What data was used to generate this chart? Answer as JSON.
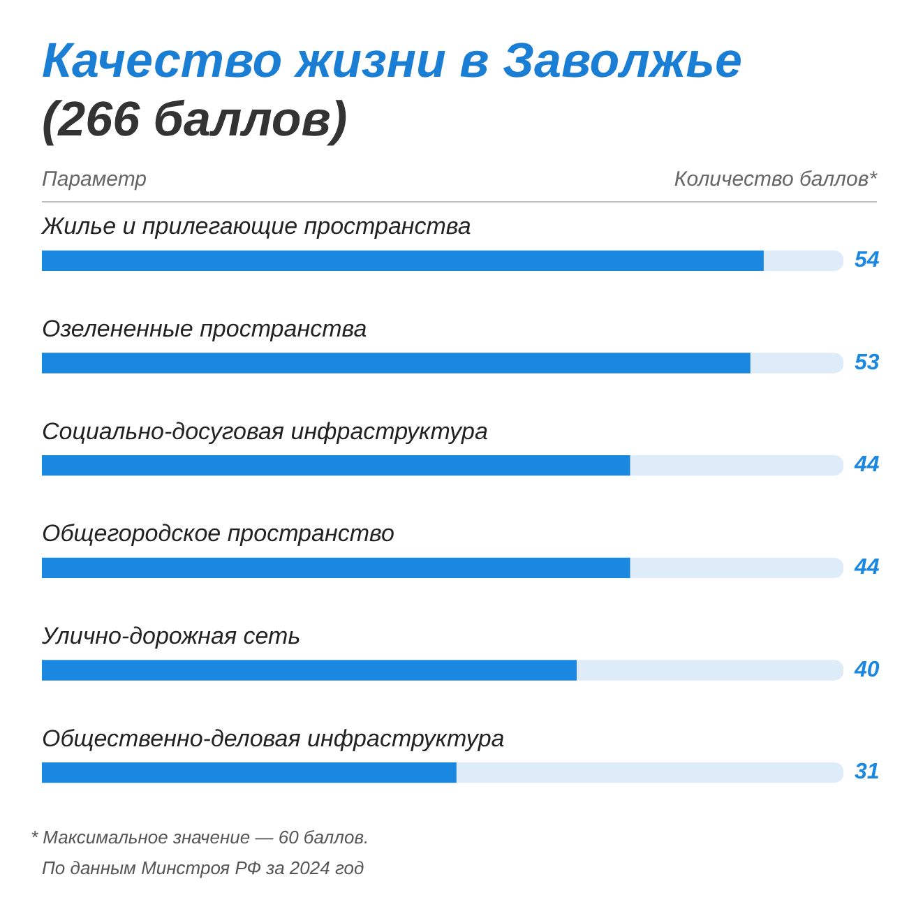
{
  "chart_data": {
    "type": "bar",
    "orientation": "horizontal",
    "title": "Качество жизни в Заволжье",
    "subtitle": "(266 баллов)",
    "ylabel": "Параметр",
    "xlabel": "Количество баллов*",
    "categories": [
      "Жилье и прилегающие пространства",
      "Озелененные пространства",
      "Социально-досуговая инфраструктура",
      "Общегородское пространство",
      "Улично-дорожная сеть",
      "Общественно-деловая инфраструктура"
    ],
    "series": [
      {
        "color": "#1a87e0",
        "values": [
          54,
          53,
          44,
          44,
          40,
          31
        ],
        "value_labels": [
          "54",
          "53",
          "44",
          "44",
          "40",
          "31"
        ]
      },
      {
        "color": "#deecf9",
        "values": [
          6,
          7,
          16,
          16,
          20,
          29
        ]
      }
    ],
    "stacked": true,
    "tick_labels": false,
    "legend": false,
    "annotations": [
      "* Максимальное значение — 60 баллов.",
      "По данным Минстроя РФ за 2024 год"
    ]
  }
}
